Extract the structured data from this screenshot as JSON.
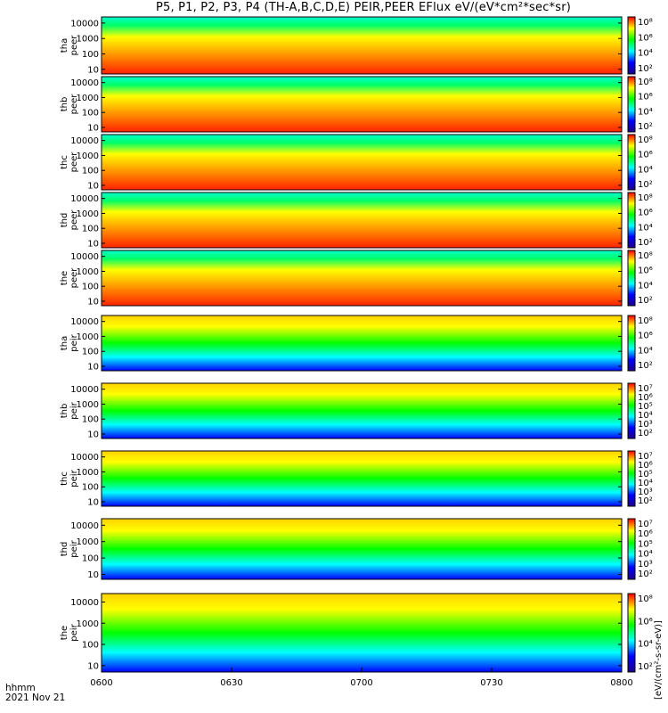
{
  "header": {
    "title": "P5, P1, P2, P3, P4 (TH-A,B,C,D,E) PEIR,PEER EFlux eV/(eV*cm²*sec*sr)"
  },
  "footer": {
    "line1": "hhmm",
    "line2": "2021 Nov 21"
  },
  "colorbar_unit": "[eV/(cm²-s-sr-eV)]",
  "chart_data": {
    "type": "heatmap",
    "xlabel": "hhmm",
    "x_range": [
      "0600",
      "0800"
    ],
    "x_ticks": [
      "0600",
      "0630",
      "0700",
      "0730",
      "0800"
    ],
    "y_scale": "log",
    "ylim": [
      5,
      25000
    ],
    "y_ticks": [
      "10",
      "100",
      "1000",
      "10000"
    ],
    "panels": [
      {
        "probe": "tha",
        "product": "peer",
        "cbar_ticks": [
          "10⁸",
          "10⁶",
          "10⁴",
          "10²"
        ]
      },
      {
        "probe": "thb",
        "product": "peer",
        "cbar_ticks": [
          "10⁸",
          "10⁶",
          "10⁴",
          "10²"
        ]
      },
      {
        "probe": "thc",
        "product": "peer",
        "cbar_ticks": [
          "10⁸",
          "10⁶",
          "10⁴",
          "10²"
        ]
      },
      {
        "probe": "thd",
        "product": "peer",
        "cbar_ticks": [
          "10⁸",
          "10⁶",
          "10⁴",
          "10²"
        ]
      },
      {
        "probe": "the",
        "product": "peer",
        "cbar_ticks": [
          "10⁸",
          "10⁶",
          "10⁴",
          "10²"
        ]
      },
      {
        "probe": "tha",
        "product": "peir",
        "cbar_ticks": [
          "10⁸",
          "10⁶",
          "10⁴",
          "10²"
        ]
      },
      {
        "probe": "thb",
        "product": "peir",
        "cbar_ticks": [
          "10⁷",
          "10⁶",
          "10⁵",
          "10⁴",
          "10³",
          "10²"
        ]
      },
      {
        "probe": "thc",
        "product": "peir",
        "cbar_ticks": [
          "10⁷",
          "10⁶",
          "10⁵",
          "10⁴",
          "10³",
          "10²"
        ]
      },
      {
        "probe": "thd",
        "product": "peir",
        "cbar_ticks": [
          "10⁷",
          "10⁶",
          "10⁵",
          "10⁴",
          "10³",
          "10²"
        ]
      },
      {
        "probe": "the",
        "product": "peir",
        "cbar_ticks": [
          "10⁸",
          "10⁶",
          "10⁴",
          "10²"
        ]
      }
    ],
    "colormap": [
      "#20008c",
      "#0000ff",
      "#00ffff",
      "#00ff00",
      "#ffff00",
      "#ff0000"
    ]
  }
}
